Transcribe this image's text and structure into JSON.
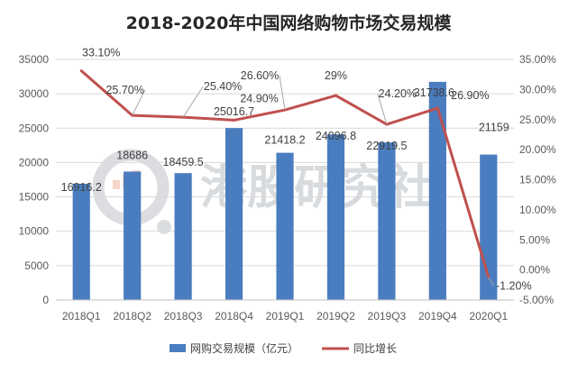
{
  "watermark": {
    "text": "港股研究社"
  },
  "chart_data": {
    "type": "bar",
    "title": "2018-2020年中国网络购物市场交易规模",
    "categories": [
      "2018Q1",
      "2018Q2",
      "2018Q3",
      "2018Q4",
      "2019Q1",
      "2019Q2",
      "2019Q3",
      "2019Q4",
      "2020Q1"
    ],
    "series": [
      {
        "name": "网购交易规模（亿元）",
        "type": "bar",
        "axis": "left",
        "color": "#4a7dbf",
        "values": [
          16916.2,
          18686,
          18459.5,
          25016.7,
          21418.2,
          24096.8,
          22919.5,
          31738.6,
          21159
        ],
        "labels": [
          "16916.2",
          "18686",
          "18459.5",
          "25016.7",
          "21418.2",
          "24096.8",
          "22919.5",
          "31738.6",
          "21159"
        ]
      },
      {
        "name": "同比增长",
        "type": "line",
        "axis": "right",
        "color": "#c0504d",
        "values": [
          33.1,
          25.7,
          25.4,
          24.9,
          26.6,
          29,
          24.2,
          26.9,
          -1.2
        ],
        "labels": [
          "33.10%",
          "25.70%",
          "25.40%",
          "24.90%",
          "26.60%",
          "29%",
          "24.20%",
          "26.90%",
          "-1.20%"
        ]
      }
    ],
    "y_left": {
      "min": 0,
      "max": 35000,
      "ticks": [
        0,
        5000,
        10000,
        15000,
        20000,
        25000,
        30000,
        35000
      ],
      "tick_labels": [
        "0",
        "5000",
        "10000",
        "15000",
        "20000",
        "25000",
        "30000",
        "35000"
      ]
    },
    "y_right": {
      "min": -5,
      "max": 35,
      "ticks": [
        -5,
        0,
        5,
        10,
        15,
        20,
        25,
        30,
        35
      ],
      "tick_labels": [
        "-5.00%",
        "0.00%",
        "5.00%",
        "10.00%",
        "15.00%",
        "20.00%",
        "25.00%",
        "30.00%",
        "35.00%"
      ]
    },
    "grid": true,
    "legend": "bottom"
  }
}
